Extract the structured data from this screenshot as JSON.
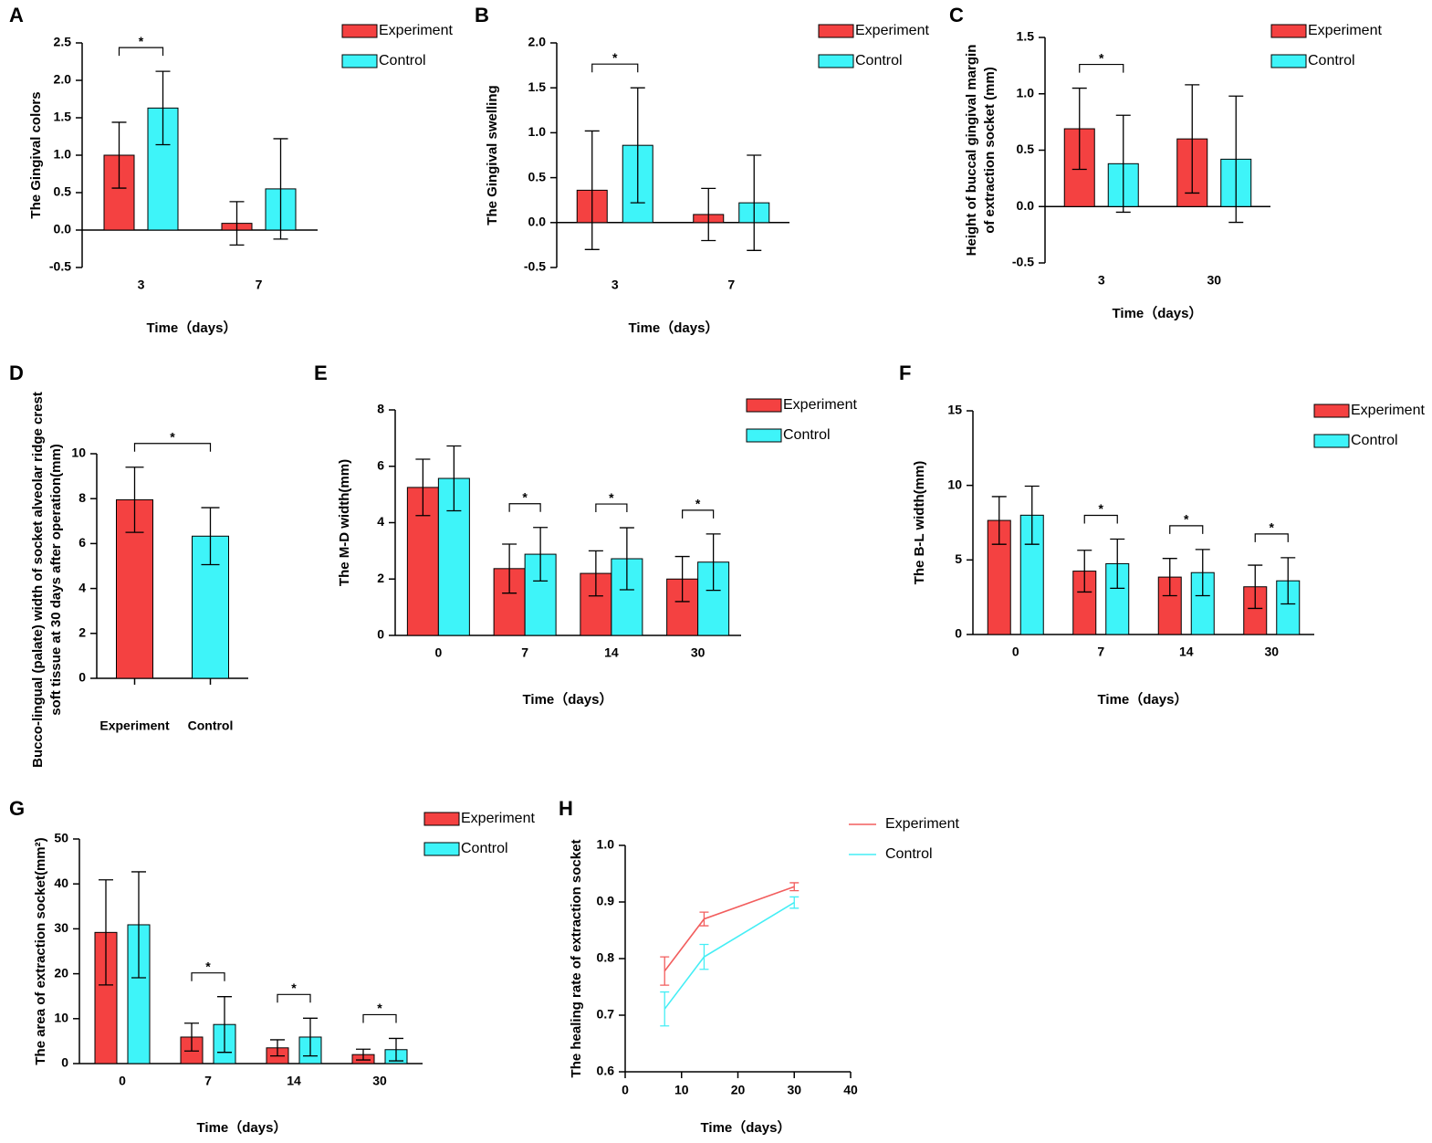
{
  "chart_data": [
    {
      "type": "bar",
      "panel": "A",
      "ylabel": "The Gingival colors",
      "xlabel": "Time（days）",
      "categories": [
        "3",
        "7"
      ],
      "series": [
        {
          "name": "Experiment",
          "color": "#f44141",
          "values": [
            1.0,
            0.09
          ],
          "errors": [
            0.44,
            0.29
          ]
        },
        {
          "name": "Control",
          "color": "#3ef4f9",
          "values": [
            1.63,
            0.55
          ],
          "errors": [
            0.49,
            0.67
          ]
        }
      ],
      "significance": [
        "*",
        null
      ],
      "ylim": [
        -0.5,
        2.5
      ],
      "yticks": [
        -0.5,
        {
          "value": 0,
          "label": "0.0"
        },
        0.5,
        {
          "value": 1,
          "label": "1.0"
        },
        1.5,
        {
          "value": 2,
          "label": "2.0"
        },
        2.5
      ]
    },
    {
      "type": "bar",
      "panel": "B",
      "ylabel": "The Gingival swelling",
      "xlabel": "Time（days）",
      "categories": [
        "3",
        "7"
      ],
      "series": [
        {
          "name": "Experiment",
          "color": "#f44141",
          "values": [
            0.36,
            0.09
          ],
          "errors": [
            0.66,
            0.29
          ]
        },
        {
          "name": "Control",
          "color": "#3ef4f9",
          "values": [
            0.86,
            0.22
          ],
          "errors": [
            0.64,
            0.53
          ]
        }
      ],
      "significance": [
        "*",
        null
      ],
      "ylim": [
        -0.5,
        2.0
      ],
      "yticks": [
        -0.5,
        {
          "value": 0,
          "label": "0.0"
        },
        0.5,
        {
          "value": 1,
          "label": "1.0"
        },
        1.5,
        {
          "value": 2,
          "label": "2.0"
        }
      ]
    },
    {
      "type": "bar",
      "panel": "C",
      "ylabel": [
        "Height of buccal gingival margin",
        "of extraction socket (mm)"
      ],
      "xlabel": "Time（days）",
      "categories": [
        "3",
        "30"
      ],
      "series": [
        {
          "name": "Experiment",
          "color": "#f44141",
          "values": [
            0.69,
            0.6
          ],
          "errors": [
            0.36,
            0.48
          ]
        },
        {
          "name": "Control",
          "color": "#3ef4f9",
          "values": [
            0.38,
            0.42
          ],
          "errors": [
            0.43,
            0.56
          ]
        }
      ],
      "significance": [
        "*",
        null
      ],
      "ylim": [
        -0.5,
        1.5
      ],
      "yticks": [
        -0.5,
        {
          "value": 0,
          "label": "0.0"
        },
        0.5,
        {
          "value": 1,
          "label": "1.0"
        },
        1.5
      ]
    },
    {
      "type": "bar",
      "panel": "D",
      "ylabel": [
        "Bucco-lingual (palate) width of socket alveolar ridge crest",
        "soft tissue at 30 days after operation(mm)"
      ],
      "categories": [
        "Experiment",
        "Control"
      ],
      "values": [
        7.95,
        6.33
      ],
      "errors": [
        1.45,
        1.27
      ],
      "colors": [
        "#f44141",
        "#3ef4f9"
      ],
      "significance": "*",
      "ylim": [
        0,
        10
      ],
      "yticks": [
        0,
        2,
        4,
        6,
        8,
        10
      ]
    },
    {
      "type": "bar",
      "panel": "E",
      "ylabel": "The M-D width(mm)",
      "xlabel": "Time（days）",
      "categories": [
        "0",
        "7",
        "14",
        "30"
      ],
      "series": [
        {
          "name": "Experiment",
          "color": "#f44141",
          "values": [
            5.25,
            2.37,
            2.2,
            2.0
          ],
          "errors": [
            1.0,
            0.87,
            0.8,
            0.8
          ]
        },
        {
          "name": "Control",
          "color": "#3ef4f9",
          "values": [
            5.57,
            2.88,
            2.72,
            2.6
          ],
          "errors": [
            1.15,
            0.95,
            1.1,
            1.0
          ]
        }
      ],
      "significance": [
        null,
        "*",
        "*",
        "*"
      ],
      "ylim": [
        0,
        8
      ],
      "yticks": [
        0,
        2,
        4,
        6,
        8
      ]
    },
    {
      "type": "bar",
      "panel": "F",
      "ylabel": "The B-L width(mm)",
      "xlabel": "Time（days）",
      "categories": [
        "0",
        "7",
        "14",
        "30"
      ],
      "series": [
        {
          "name": "Experiment",
          "color": "#f44141",
          "values": [
            7.65,
            4.25,
            3.85,
            3.2
          ],
          "errors": [
            1.6,
            1.4,
            1.25,
            1.45
          ]
        },
        {
          "name": "Control",
          "color": "#3ef4f9",
          "values": [
            8.0,
            4.75,
            4.15,
            3.6
          ],
          "errors": [
            1.95,
            1.65,
            1.55,
            1.55
          ]
        }
      ],
      "significance": [
        null,
        "*",
        "*",
        "*"
      ],
      "ylim": [
        0,
        15
      ],
      "yticks": [
        0,
        5,
        10,
        15
      ]
    },
    {
      "type": "bar",
      "panel": "G",
      "ylabel": "The area of extraction socket(mm²)",
      "xlabel": "Time（days）",
      "categories": [
        "0",
        "7",
        "14",
        "30"
      ],
      "series": [
        {
          "name": "Experiment",
          "color": "#f44141",
          "values": [
            29.2,
            5.9,
            3.5,
            2.0
          ],
          "errors": [
            11.7,
            3.1,
            1.8,
            1.2
          ]
        },
        {
          "name": "Control",
          "color": "#3ef4f9",
          "values": [
            30.9,
            8.7,
            5.9,
            3.1
          ],
          "errors": [
            11.8,
            6.2,
            4.2,
            2.5
          ]
        }
      ],
      "significance": [
        null,
        "*",
        "*",
        "*"
      ],
      "ylim": [
        0,
        50
      ],
      "yticks": [
        0,
        10,
        20,
        30,
        40,
        50
      ]
    },
    {
      "type": "line",
      "panel": "H",
      "ylabel": "The healing rate of extraction socket",
      "xlabel": "Time（days）",
      "x": [
        7,
        14,
        30
      ],
      "series": [
        {
          "name": "Experiment",
          "color": "#f25e5e",
          "values": [
            0.778,
            0.87,
            0.927
          ],
          "errors": [
            0.025,
            0.012,
            0.007
          ]
        },
        {
          "name": "Control",
          "color": "#45eef5",
          "values": [
            0.711,
            0.803,
            0.899
          ],
          "errors": [
            0.03,
            0.022,
            0.01
          ]
        }
      ],
      "xlim": [
        0,
        40
      ],
      "xticks": [
        0,
        10,
        20,
        30,
        40
      ],
      "ylim": [
        0.6,
        1.0
      ],
      "yticks": [
        0.6,
        0.7,
        0.8,
        0.9,
        {
          "value": 1,
          "label": "1.0"
        }
      ]
    }
  ]
}
